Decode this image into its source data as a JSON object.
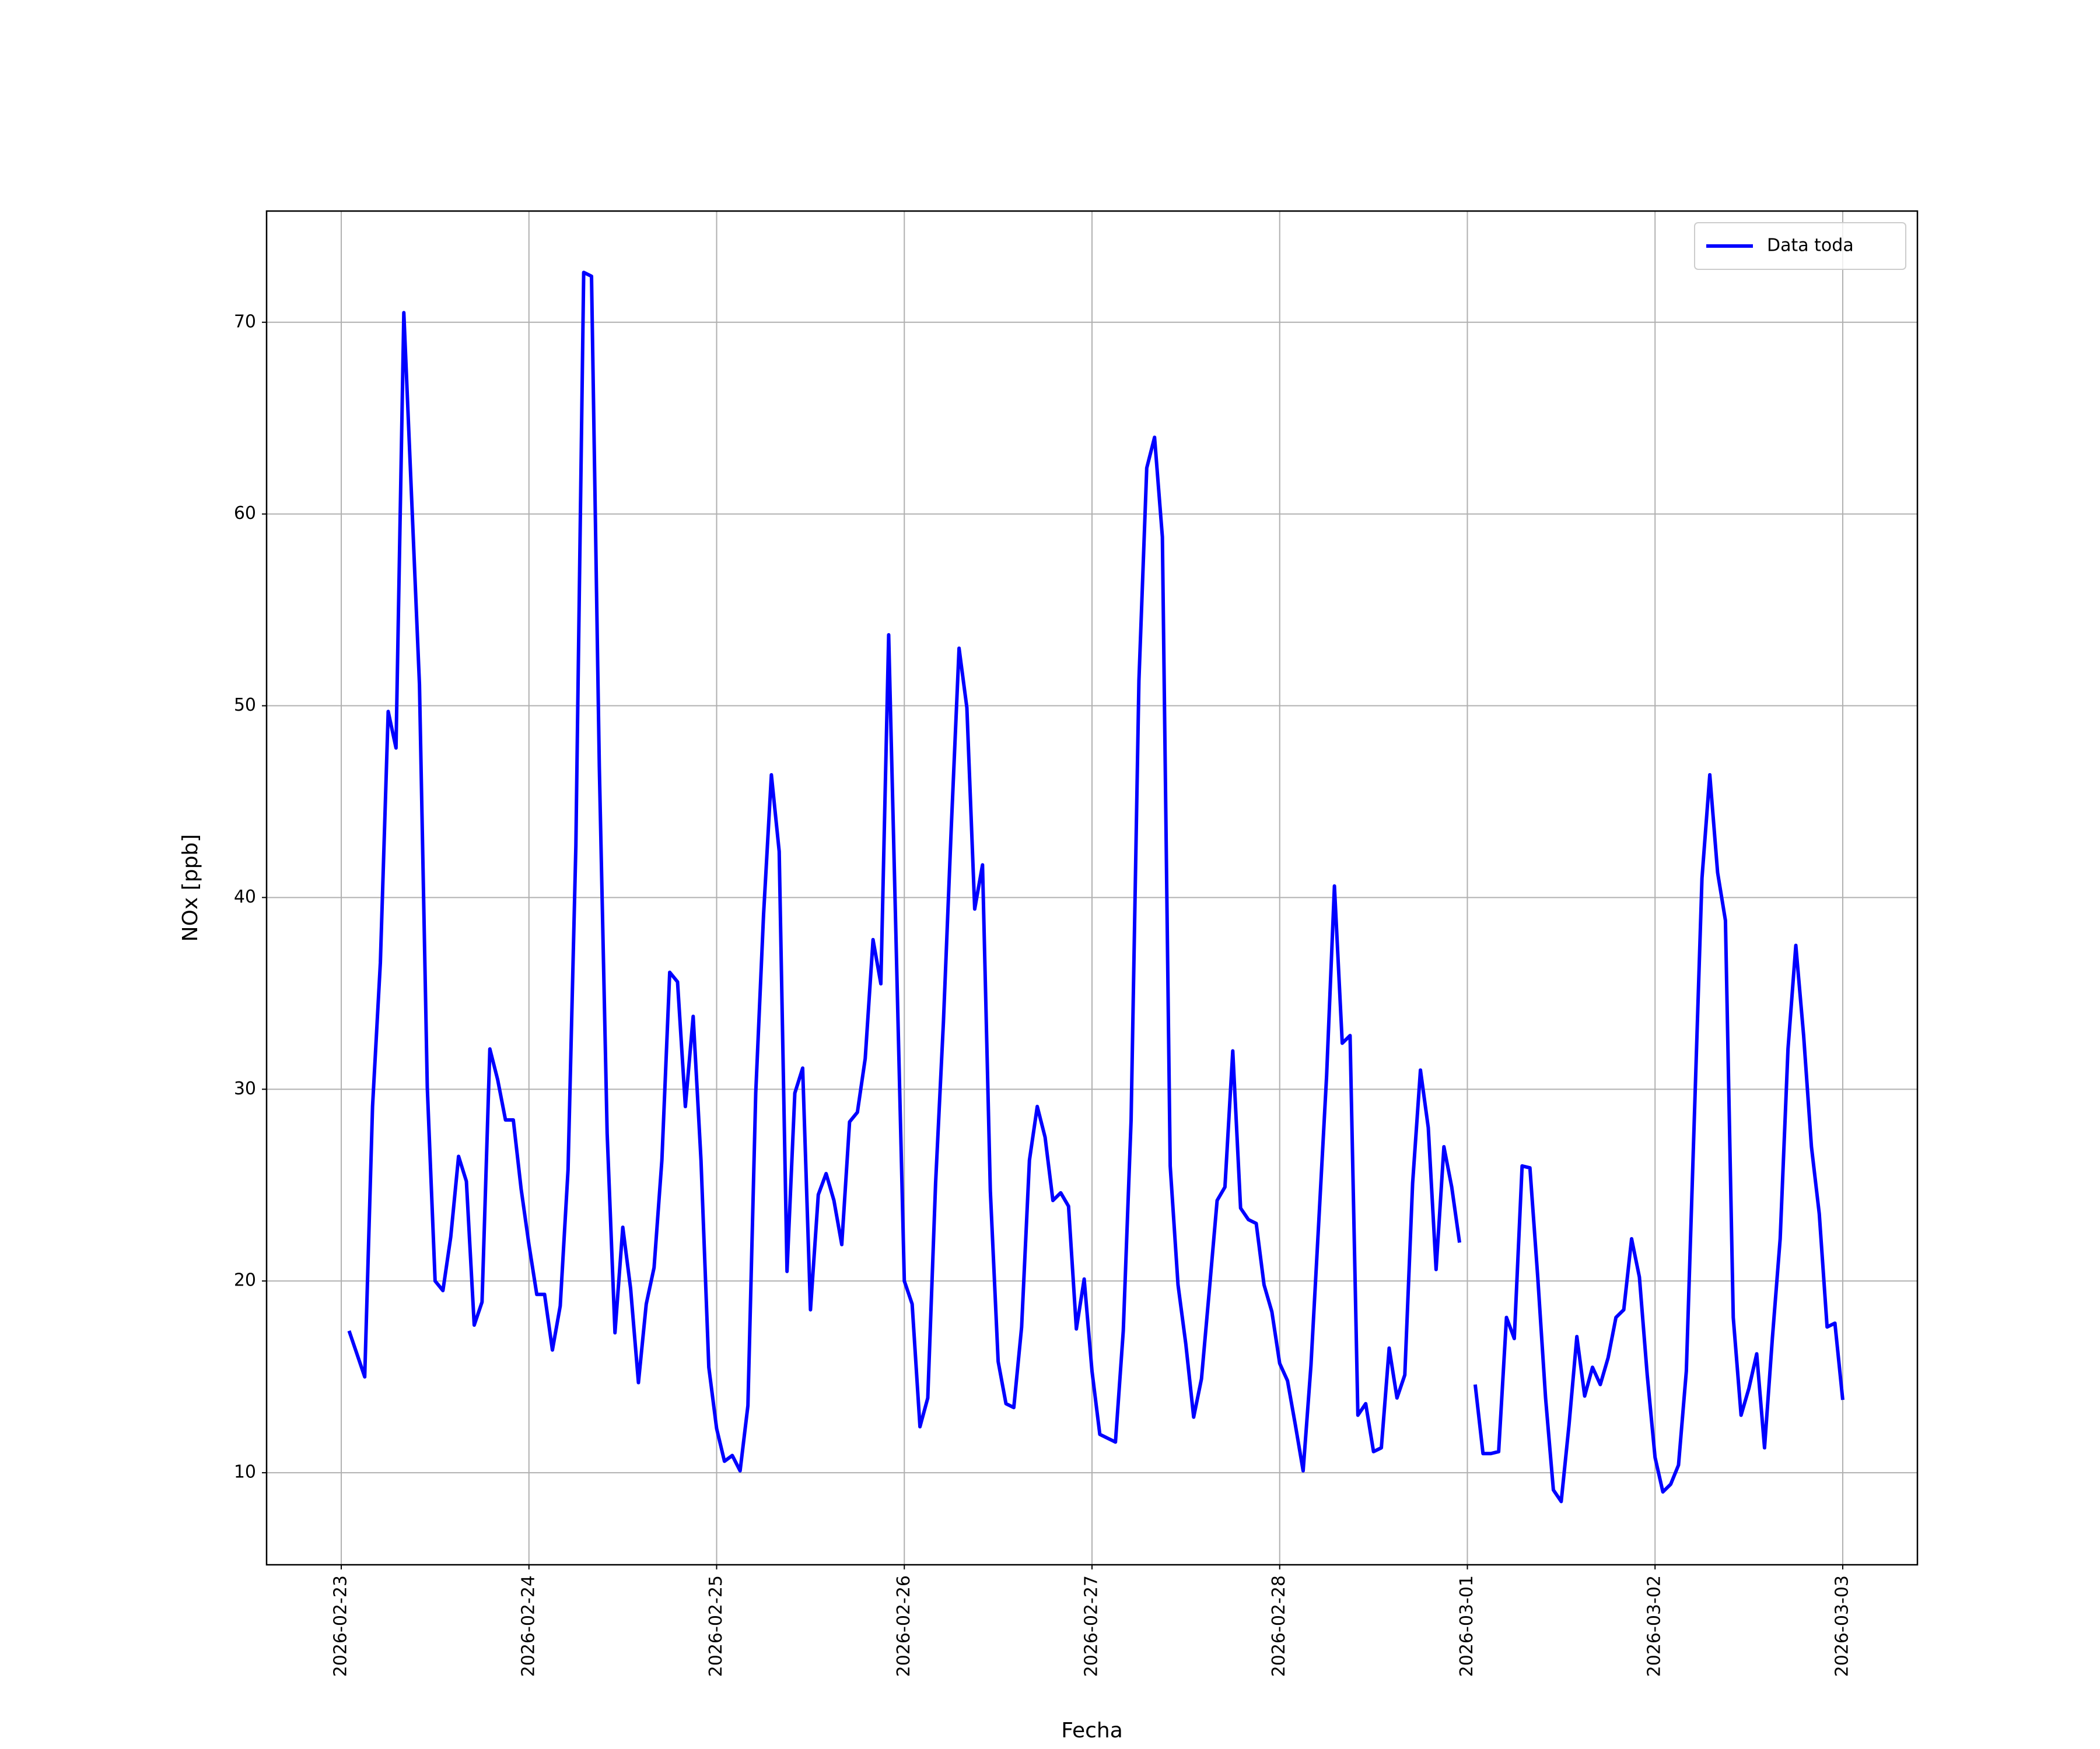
{
  "chart_data": {
    "type": "line",
    "xlabel": "Fecha",
    "ylabel": "NOx [ppb]",
    "x": [
      "2026-02-23 01:00",
      "2026-02-23 02:00",
      "2026-02-23 03:00",
      "2026-02-23 04:00",
      "2026-02-23 05:00",
      "2026-02-23 06:00",
      "2026-02-23 07:00",
      "2026-02-23 08:00",
      "2026-02-23 09:00",
      "2026-02-23 10:00",
      "2026-02-23 11:00",
      "2026-02-23 12:00",
      "2026-02-23 13:00",
      "2026-02-23 14:00",
      "2026-02-23 15:00",
      "2026-02-23 16:00",
      "2026-02-23 17:00",
      "2026-02-23 18:00",
      "2026-02-23 19:00",
      "2026-02-23 20:00",
      "2026-02-23 21:00",
      "2026-02-23 22:00",
      "2026-02-23 23:00",
      "2026-02-24 00:00",
      "2026-02-24 01:00",
      "2026-02-24 02:00",
      "2026-02-24 03:00",
      "2026-02-24 04:00",
      "2026-02-24 05:00",
      "2026-02-24 06:00",
      "2026-02-24 07:00",
      "2026-02-24 08:00",
      "2026-02-24 09:00",
      "2026-02-24 10:00",
      "2026-02-24 11:00",
      "2026-02-24 12:00",
      "2026-02-24 13:00",
      "2026-02-24 14:00",
      "2026-02-24 15:00",
      "2026-02-24 16:00",
      "2026-02-24 17:00",
      "2026-02-24 18:00",
      "2026-02-24 19:00",
      "2026-02-24 20:00",
      "2026-02-24 21:00",
      "2026-02-24 22:00",
      "2026-02-24 23:00",
      "2026-02-25 00:00",
      "2026-02-25 01:00",
      "2026-02-25 02:00",
      "2026-02-25 03:00",
      "2026-02-25 04:00",
      "2026-02-25 05:00",
      "2026-02-25 06:00",
      "2026-02-25 07:00",
      "2026-02-25 08:00",
      "2026-02-25 09:00",
      "2026-02-25 10:00",
      "2026-02-25 11:00",
      "2026-02-25 12:00",
      "2026-02-25 13:00",
      "2026-02-25 14:00",
      "2026-02-25 15:00",
      "2026-02-25 16:00",
      "2026-02-25 17:00",
      "2026-02-25 18:00",
      "2026-02-25 19:00",
      "2026-02-25 20:00",
      "2026-02-25 21:00",
      "2026-02-25 22:00",
      "2026-02-25 23:00",
      "2026-02-26 00:00",
      "2026-02-26 01:00",
      "2026-02-26 02:00",
      "2026-02-26 03:00",
      "2026-02-26 04:00",
      "2026-02-26 05:00",
      "2026-02-26 06:00",
      "2026-02-26 07:00",
      "2026-02-26 08:00",
      "2026-02-26 09:00",
      "2026-02-26 10:00",
      "2026-02-26 11:00",
      "2026-02-26 12:00",
      "2026-02-26 13:00",
      "2026-02-26 14:00",
      "2026-02-26 15:00",
      "2026-02-26 16:00",
      "2026-02-26 17:00",
      "2026-02-26 18:00",
      "2026-02-26 19:00",
      "2026-02-26 20:00",
      "2026-02-26 21:00",
      "2026-02-26 22:00",
      "2026-02-26 23:00",
      "2026-02-27 00:00",
      "2026-02-27 01:00",
      "2026-02-27 02:00",
      "2026-02-27 03:00",
      "2026-02-27 04:00",
      "2026-02-27 05:00",
      "2026-02-27 06:00",
      "2026-02-27 07:00",
      "2026-02-27 08:00",
      "2026-02-27 09:00",
      "2026-02-27 10:00",
      "2026-02-27 11:00",
      "2026-02-27 12:00",
      "2026-02-27 13:00",
      "2026-02-27 14:00",
      "2026-02-27 15:00",
      "2026-02-27 16:00",
      "2026-02-27 17:00",
      "2026-02-27 18:00",
      "2026-02-27 19:00",
      "2026-02-27 20:00",
      "2026-02-27 21:00",
      "2026-02-27 22:00",
      "2026-02-27 23:00",
      "2026-02-28 00:00",
      "2026-02-28 01:00",
      "2026-02-28 02:00",
      "2026-02-28 03:00",
      "2026-02-28 04:00",
      "2026-02-28 05:00",
      "2026-02-28 06:00",
      "2026-02-28 07:00",
      "2026-02-28 08:00",
      "2026-02-28 09:00",
      "2026-02-28 10:00",
      "2026-02-28 11:00",
      "2026-02-28 12:00",
      "2026-02-28 13:00",
      "2026-02-28 14:00",
      "2026-02-28 15:00",
      "2026-02-28 16:00",
      "2026-02-28 17:00",
      "2026-02-28 18:00",
      "2026-02-28 19:00",
      "2026-02-28 20:00",
      "2026-02-28 21:00",
      "2026-02-28 22:00",
      "2026-02-28 23:00",
      "2026-03-01 00:00",
      "2026-03-01 01:00",
      "2026-03-01 02:00",
      "2026-03-01 03:00",
      "2026-03-01 04:00",
      "2026-03-01 05:00",
      "2026-03-01 06:00",
      "2026-03-01 07:00",
      "2026-03-01 08:00",
      "2026-03-01 09:00",
      "2026-03-01 10:00",
      "2026-03-01 11:00",
      "2026-03-01 12:00",
      "2026-03-01 13:00",
      "2026-03-01 14:00",
      "2026-03-01 15:00",
      "2026-03-01 16:00",
      "2026-03-01 17:00",
      "2026-03-01 18:00",
      "2026-03-01 19:00",
      "2026-03-01 20:00",
      "2026-03-01 21:00",
      "2026-03-01 22:00",
      "2026-03-01 23:00",
      "2026-03-02 00:00",
      "2026-03-02 01:00",
      "2026-03-02 02:00",
      "2026-03-02 03:00",
      "2026-03-02 04:00",
      "2026-03-02 05:00",
      "2026-03-02 06:00",
      "2026-03-02 07:00",
      "2026-03-02 08:00",
      "2026-03-02 09:00",
      "2026-03-02 10:00",
      "2026-03-02 11:00",
      "2026-03-02 12:00",
      "2026-03-02 13:00",
      "2026-03-02 14:00",
      "2026-03-02 15:00",
      "2026-03-02 16:00",
      "2026-03-02 17:00",
      "2026-03-02 18:00",
      "2026-03-02 19:00",
      "2026-03-02 20:00",
      "2026-03-02 21:00",
      "2026-03-02 22:00",
      "2026-03-02 23:00",
      "2026-03-03 00:00"
    ],
    "series": [
      {
        "name": "Data toda",
        "color": "#0000ff",
        "values": [
          17.4,
          16.2,
          15.0,
          29.1,
          36.6,
          49.7,
          47.8,
          70.5,
          60.8,
          51.1,
          30.1,
          20.0,
          19.5,
          22.3,
          26.5,
          25.2,
          17.7,
          18.9,
          32.1,
          30.5,
          28.4,
          28.4,
          24.8,
          21.9,
          19.3,
          19.3,
          16.4,
          18.7,
          25.8,
          42.7,
          72.6,
          72.4,
          46.8,
          27.7,
          17.3,
          22.8,
          19.6,
          14.7,
          18.8,
          20.7,
          26.3,
          36.1,
          35.6,
          29.1,
          33.8,
          26.3,
          15.5,
          12.3,
          10.6,
          10.9,
          10.1,
          13.5,
          29.8,
          39.1,
          46.4,
          42.4,
          20.5,
          29.8,
          31.1,
          18.5,
          24.5,
          25.6,
          24.2,
          21.9,
          28.3,
          28.8,
          31.6,
          37.8,
          35.5,
          53.7,
          36.8,
          20.0,
          18.8,
          12.4,
          13.9,
          25.1,
          33.5,
          43.6,
          53.0,
          49.9,
          39.4,
          41.7,
          24.7,
          15.8,
          13.6,
          13.4,
          17.6,
          26.3,
          29.1,
          27.5,
          24.2,
          24.6,
          23.9,
          17.5,
          20.1,
          15.3,
          12.0,
          11.8,
          11.6,
          17.4,
          28.4,
          51.3,
          62.4,
          64.0,
          58.8,
          26.0,
          19.8,
          16.7,
          12.9,
          14.9,
          19.5,
          24.2,
          24.9,
          32.0,
          23.8,
          23.2,
          23.0,
          19.8,
          18.4,
          15.7,
          14.8,
          12.5,
          10.1,
          15.6,
          23.1,
          30.7,
          40.6,
          32.4,
          32.8,
          13.0,
          13.6,
          11.1,
          11.3,
          16.5,
          13.9,
          15.1,
          25.1,
          31.0,
          28.0,
          20.6,
          27.0,
          24.9,
          22.0,
          null,
          14.6,
          11.0,
          11.0,
          11.1,
          18.1,
          17.0,
          26.0,
          25.9,
          20.2,
          13.9,
          9.1,
          8.5,
          12.5,
          17.1,
          14.0,
          15.5,
          14.6,
          16.0,
          18.1,
          18.5,
          22.2,
          20.2,
          15.1,
          10.8,
          9.0,
          9.4,
          10.4,
          15.3,
          28.2,
          41.0,
          46.4,
          41.3,
          38.8,
          18.1,
          13.0,
          14.4,
          16.2,
          11.3,
          17.0,
          22.2,
          32.1,
          37.5,
          32.8,
          27.0,
          23.5,
          17.6,
          17.8,
          13.8
        ]
      }
    ],
    "xlim": [
      "2026-02-22 14:27",
      "2026-03-03 09:33"
    ],
    "xticks": [
      "2026-02-23",
      "2026-02-24",
      "2026-02-25",
      "2026-02-26",
      "2026-02-27",
      "2026-02-28",
      "2026-03-01",
      "2026-03-02",
      "2026-03-03"
    ],
    "ylim": [
      5.2,
      75.8
    ],
    "yticks": [
      10,
      20,
      30,
      40,
      50,
      60,
      70
    ],
    "grid": true,
    "legend": "upper right"
  }
}
